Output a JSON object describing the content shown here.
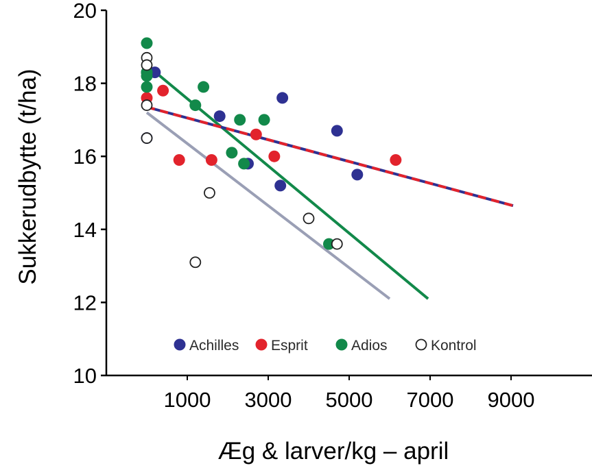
{
  "chart_data": {
    "type": "scatter",
    "xlabel": "Æg & larver/kg – april",
    "ylabel": "Sukkerudbytte (t/ha)",
    "xlim": [
      -1000,
      11000
    ],
    "ylim": [
      10,
      20
    ],
    "x_ticks": [
      1000,
      3000,
      5000,
      7000,
      9000
    ],
    "y_ticks": [
      10,
      12,
      14,
      16,
      18,
      20
    ],
    "grid": false,
    "legend_position": "bottom-inside",
    "series": [
      {
        "name": "Achilles",
        "color": "#2e3192",
        "marker": "filled",
        "points": [
          [
            0,
            18.3
          ],
          [
            0,
            16.5
          ],
          [
            200,
            18.3
          ],
          [
            1800,
            17.1
          ],
          [
            2500,
            15.8
          ],
          [
            3300,
            15.2
          ],
          [
            3350,
            17.6
          ],
          [
            4700,
            16.7
          ],
          [
            5200,
            15.5
          ]
        ]
      },
      {
        "name": "Esprit",
        "color": "#e2232c",
        "marker": "filled",
        "points": [
          [
            0,
            17.6
          ],
          [
            400,
            17.8
          ],
          [
            800,
            15.9
          ],
          [
            1600,
            15.9
          ],
          [
            2700,
            16.6
          ],
          [
            3150,
            16.0
          ],
          [
            6150,
            15.9
          ]
        ]
      },
      {
        "name": "Adios",
        "color": "#12894a",
        "marker": "filled",
        "points": [
          [
            0,
            19.1
          ],
          [
            0,
            18.3
          ],
          [
            0,
            17.9
          ],
          [
            0,
            18.2
          ],
          [
            1200,
            17.4
          ],
          [
            1400,
            17.9
          ],
          [
            2100,
            16.1
          ],
          [
            2300,
            17.0
          ],
          [
            2400,
            15.8
          ],
          [
            2900,
            17.0
          ],
          [
            4500,
            13.6
          ]
        ]
      },
      {
        "name": "Kontrol",
        "color": "#222222",
        "marker": "open",
        "points": [
          [
            0,
            18.7
          ],
          [
            0,
            18.5
          ],
          [
            0,
            17.4
          ],
          [
            0,
            16.5
          ],
          [
            1200,
            13.1
          ],
          [
            1550,
            15.0
          ],
          [
            4000,
            14.3
          ],
          [
            4700,
            13.6
          ]
        ]
      }
    ],
    "trend_lines": [
      {
        "series": "Kontrol",
        "color": "#9a9fb5",
        "style": "solid",
        "from": [
          0,
          17.2
        ],
        "to": [
          6000,
          12.1
        ]
      },
      {
        "series": "Adios",
        "color": "#12894a",
        "style": "solid",
        "from": [
          0,
          18.5
        ],
        "to": [
          6950,
          12.1
        ]
      },
      {
        "series": "Achilles/Esprit",
        "color": "#2e3192",
        "color2": "#e2232c",
        "style": "dashed",
        "from": [
          0,
          17.35
        ],
        "to": [
          9050,
          14.65
        ]
      }
    ]
  }
}
